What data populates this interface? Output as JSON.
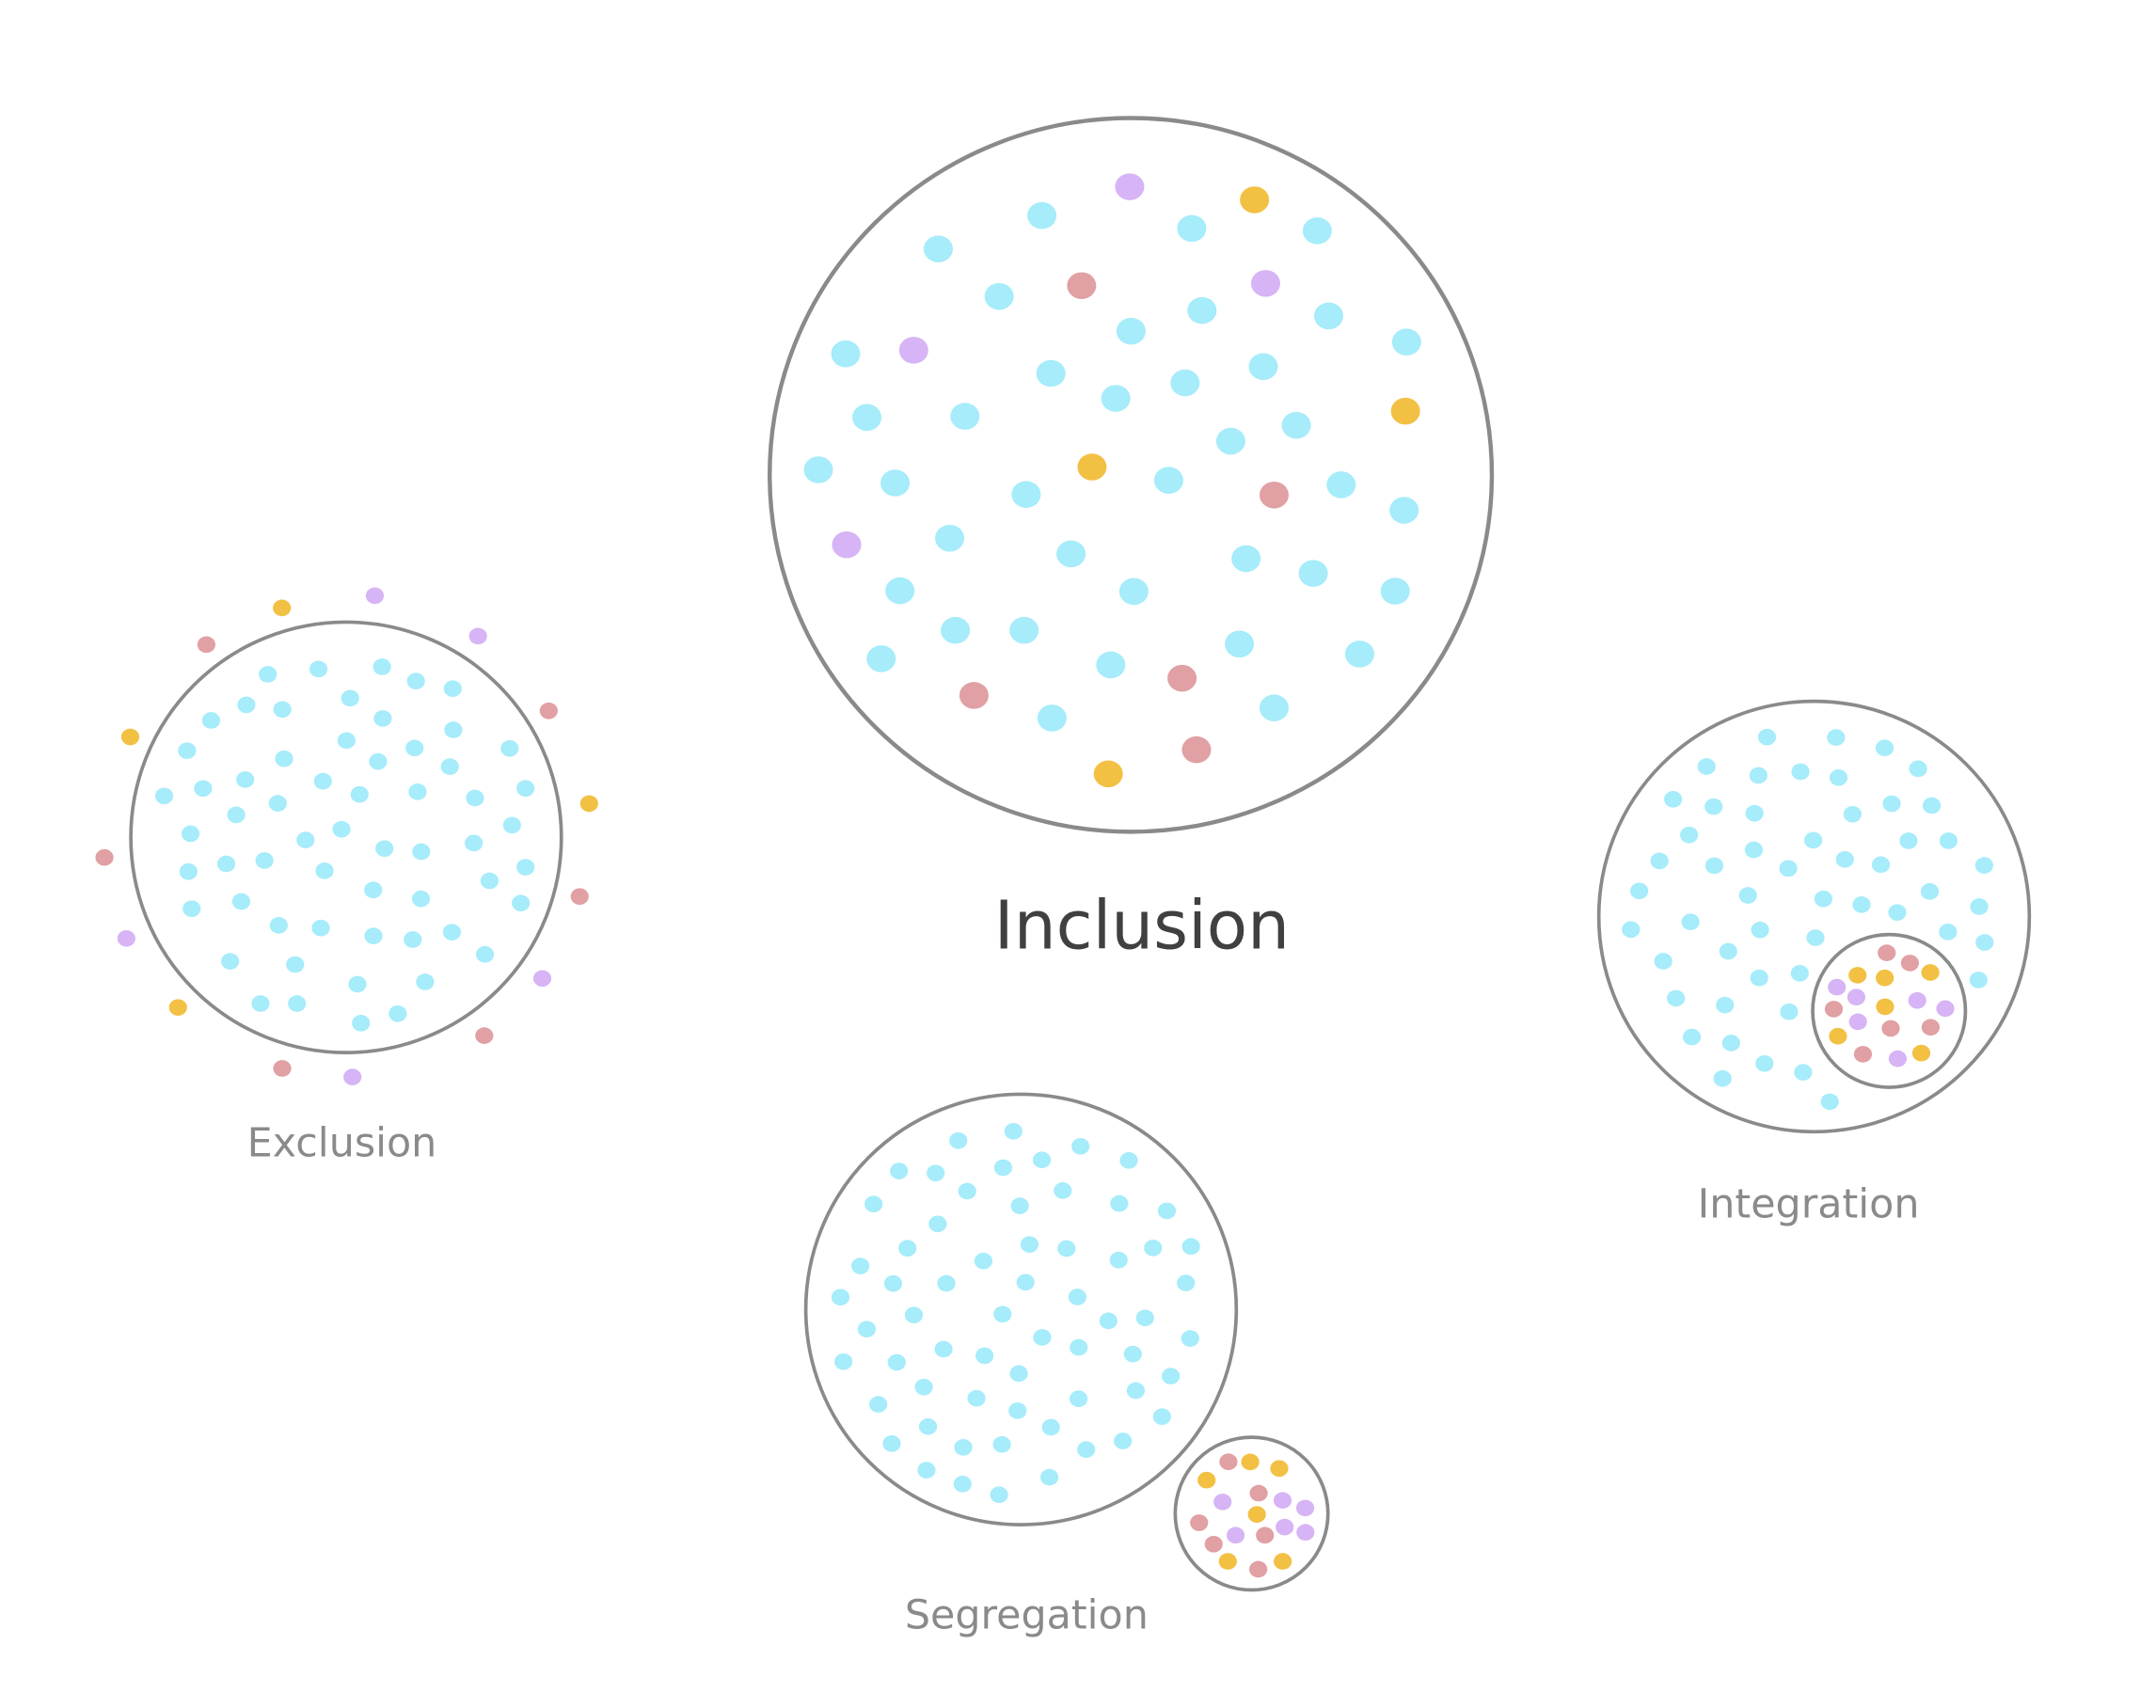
{
  "labels": {
    "inclusion": "Inclusion",
    "exclusion": "Exclusion",
    "segregation": "Segregation",
    "integration": "Integration"
  }
}
